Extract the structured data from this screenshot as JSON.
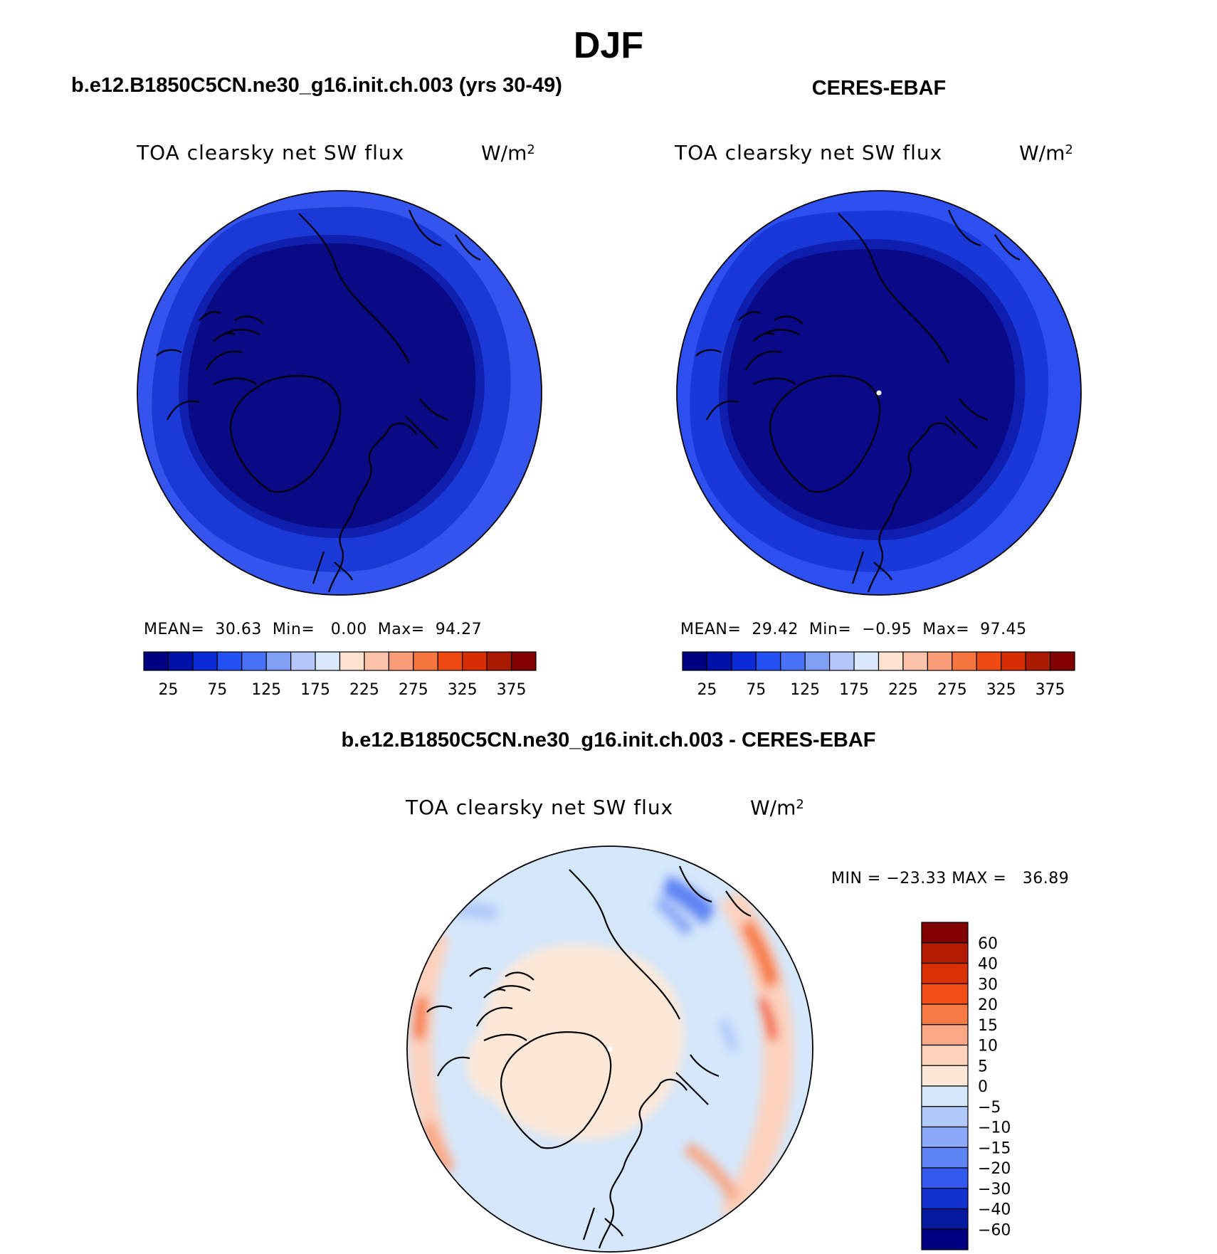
{
  "title": "DJF",
  "panels": [
    {
      "id": "model",
      "title": "b.e12.B1850C5CN.ne30_g16.init.ch.003 (yrs 30-49)",
      "variable": "TOA clearsky net SW flux",
      "units_base": "W/m",
      "units_exp": "2",
      "stats": {
        "mean_label": "MEAN=",
        "mean": "30.63",
        "min_label": "Min=",
        "min": "0.00",
        "max_label": "Max=",
        "max": "94.27"
      },
      "field_colors": [
        "#3355ee",
        "#1a39d6",
        "#0f1fae",
        "#0a0a85"
      ]
    },
    {
      "id": "obs",
      "title": "CERES-EBAF",
      "variable": "TOA clearsky net SW flux",
      "units_base": "W/m",
      "units_exp": "2",
      "stats": {
        "mean_label": "MEAN=",
        "mean": "29.42",
        "min_label": "Min=",
        "min": "−0.95",
        "max_label": "Max=",
        "max": "97.45"
      },
      "field_colors": [
        "#2e4ff0",
        "#1838d8",
        "#0e1fb0",
        "#0a0a88"
      ]
    }
  ],
  "diff": {
    "title": "b.e12.B1850C5CN.ne30_g16.init.ch.003 - CERES-EBAF",
    "variable": "TOA clearsky net SW flux",
    "units_base": "W/m",
    "units_exp": "2",
    "minmax": "MIN = −23.33 MAX =   36.89"
  },
  "chart_data": [
    {
      "type": "heatmap",
      "title": "b.e12.B1850C5CN.ne30_g16.init.ch.003 (yrs 30-49)",
      "variable": "TOA clearsky net SW flux",
      "projection": "north polar stereographic",
      "colorbar": {
        "orientation": "horizontal",
        "tick_labels": [
          "25",
          "75",
          "125",
          "175",
          "225",
          "275",
          "325",
          "375"
        ],
        "colors": [
          "#000080",
          "#0011a8",
          "#0a2bd6",
          "#2452f2",
          "#4a72f8",
          "#7f9ff5",
          "#b3c7fa",
          "#d9e8fb",
          "#fde3cf",
          "#fbc4aa",
          "#f99d78",
          "#f7763f",
          "#f04a13",
          "#d62d03",
          "#a81b02",
          "#800000"
        ]
      },
      "stats": {
        "mean": 30.63,
        "min": 0.0,
        "max": 94.27
      }
    },
    {
      "type": "heatmap",
      "title": "CERES-EBAF",
      "variable": "TOA clearsky net SW flux",
      "projection": "north polar stereographic",
      "colorbar": {
        "orientation": "horizontal",
        "tick_labels": [
          "25",
          "75",
          "125",
          "175",
          "225",
          "275",
          "325",
          "375"
        ],
        "colors": [
          "#000080",
          "#0011a8",
          "#0a2bd6",
          "#2452f2",
          "#4a72f8",
          "#7f9ff5",
          "#b3c7fa",
          "#d9e8fb",
          "#fde3cf",
          "#fbc4aa",
          "#f99d78",
          "#f7763f",
          "#f04a13",
          "#d62d03",
          "#a81b02",
          "#800000"
        ]
      },
      "stats": {
        "mean": 29.42,
        "min": -0.95,
        "max": 97.45
      }
    },
    {
      "type": "heatmap",
      "title": "b.e12.B1850C5CN.ne30_g16.init.ch.003 - CERES-EBAF",
      "variable": "TOA clearsky net SW flux",
      "projection": "north polar stereographic",
      "colorbar": {
        "orientation": "vertical",
        "tick_labels": [
          "60",
          "40",
          "30",
          "20",
          "15",
          "10",
          "5",
          "0",
          "−5",
          "−10",
          "−15",
          "−20",
          "−30",
          "−40",
          "−60"
        ],
        "colors": [
          "#800000",
          "#b31c01",
          "#d93004",
          "#f34e15",
          "#f77b45",
          "#f9a785",
          "#fcd2bd",
          "#fde8d8",
          "#d4e7fb",
          "#b1c9fa",
          "#8aa8f7",
          "#5d82f4",
          "#3258ed",
          "#1232d0",
          "#031aa0",
          "#000080"
        ]
      },
      "stats": {
        "min": -23.33,
        "max": 36.89
      }
    }
  ]
}
